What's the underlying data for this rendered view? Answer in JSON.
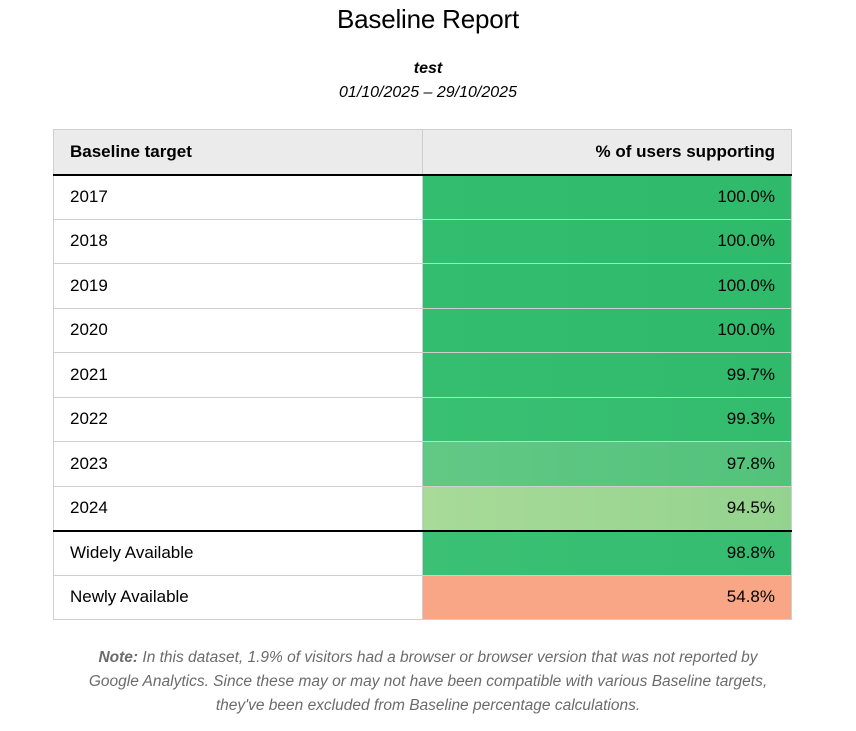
{
  "title": "Baseline Report",
  "subtitle": "test",
  "date_range": "01/10/2025 – 29/10/2025",
  "table": {
    "headers": [
      "Baseline target",
      "% of users supporting"
    ],
    "rows": [
      {
        "target": "2017",
        "pct": "100.0%",
        "color": "#33bd6e",
        "color_end": "#2fb96b"
      },
      {
        "target": "2018",
        "pct": "100.0%",
        "color": "#33bd6e",
        "color_end": "#2fb96b"
      },
      {
        "target": "2019",
        "pct": "100.0%",
        "color": "#33bd6e",
        "color_end": "#2fb96b"
      },
      {
        "target": "2020",
        "pct": "100.0%",
        "color": "#33bd6e",
        "color_end": "#2fb96b"
      },
      {
        "target": "2021",
        "pct": "99.7%",
        "color": "#35be70",
        "color_end": "#31ba6c"
      },
      {
        "target": "2022",
        "pct": "99.3%",
        "color": "#39c073",
        "color_end": "#33bb6e"
      },
      {
        "target": "2023",
        "pct": "97.8%",
        "color": "#62c985",
        "color_end": "#52c27b"
      },
      {
        "target": "2024",
        "pct": "94.5%",
        "color": "#a8da98",
        "color_end": "#94d38f"
      },
      {
        "target": "Widely Available",
        "pct": "98.8%",
        "color": "#3bc074",
        "color_end": "#35bc70",
        "separator": true
      },
      {
        "target": "Newly Available",
        "pct": "54.8%",
        "color": "#f9a686",
        "color_end": "#f9a686"
      }
    ]
  },
  "note": {
    "label": "Note:",
    "text": "In this dataset, 1.9% of visitors had a browser or browser version that was not reported by Google Analytics. Since these may or may not have been compatible with various Baseline targets, they've been excluded from Baseline percentage calculations."
  }
}
